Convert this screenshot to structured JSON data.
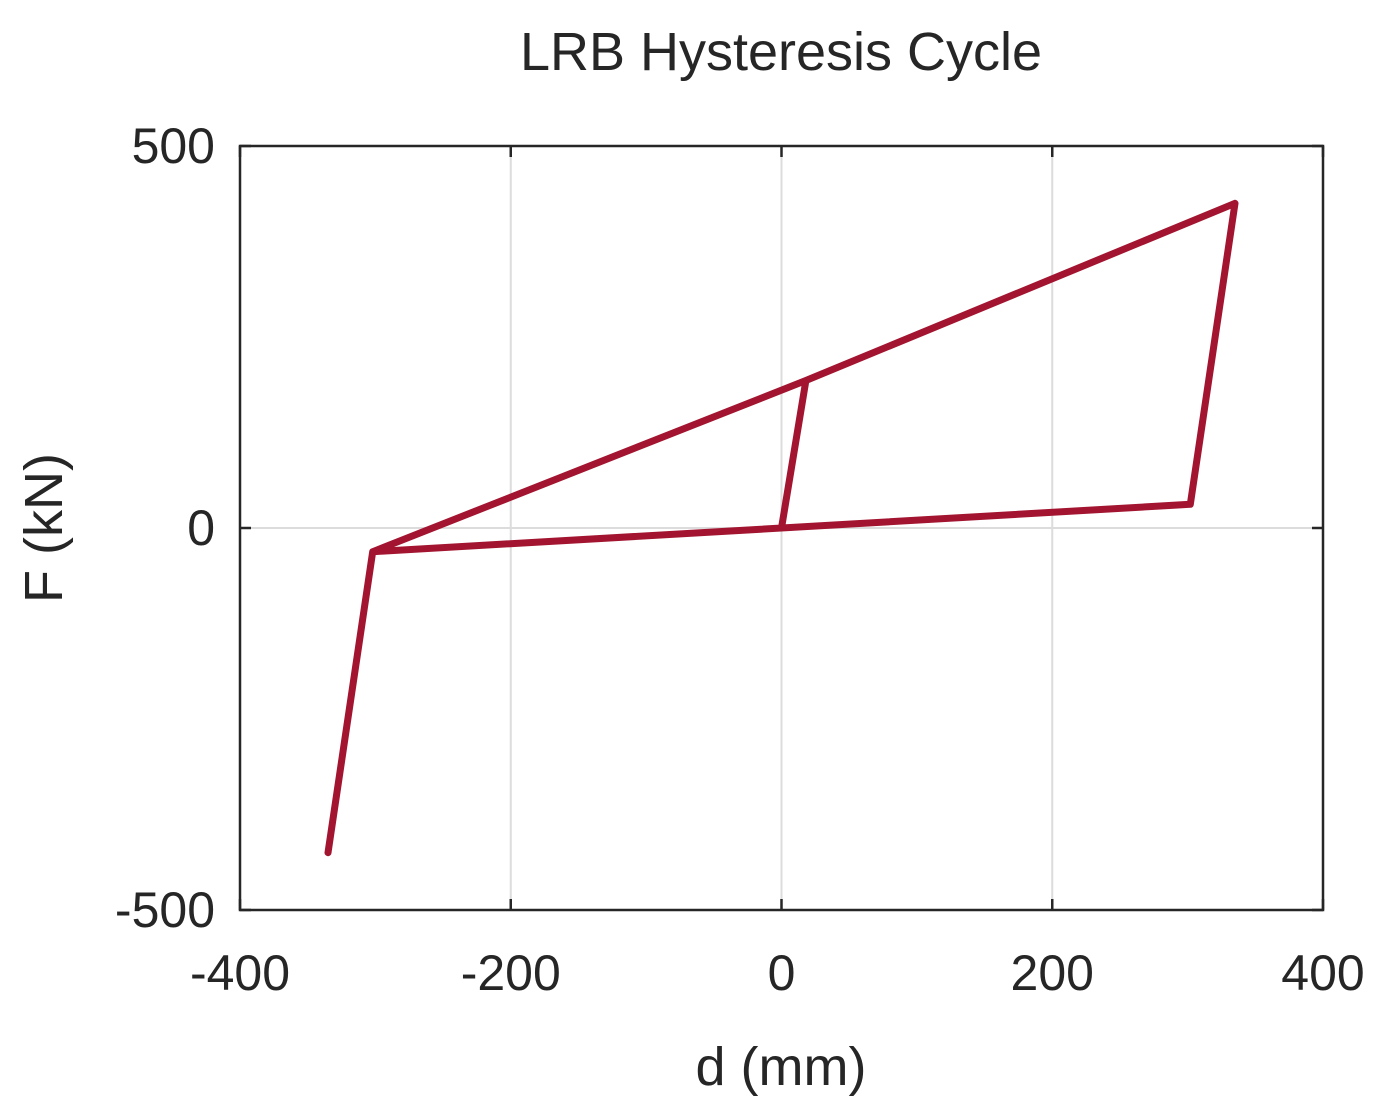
{
  "chart_data": {
    "type": "line",
    "title": "LRB Hysteresis Cycle",
    "xlabel": "d (mm)",
    "ylabel": "F (kN)",
    "xlim": [
      -400,
      400
    ],
    "ylim": [
      -500,
      500
    ],
    "xticks": [
      -400,
      -200,
      0,
      200,
      400
    ],
    "yticks": [
      -500,
      0,
      500
    ],
    "xtick_labels": [
      "-400",
      "-200",
      "0",
      "200",
      "400"
    ],
    "ytick_labels": [
      "-500",
      "0",
      "500"
    ],
    "grid": true,
    "series": [
      {
        "color": "#a2142f",
        "x": [
          0,
          18,
          335,
          302,
          -302,
          -335,
          -302,
          18
        ],
        "y": [
          0,
          193,
          425,
          31,
          -31,
          -425,
          -31,
          193
        ]
      }
    ]
  }
}
